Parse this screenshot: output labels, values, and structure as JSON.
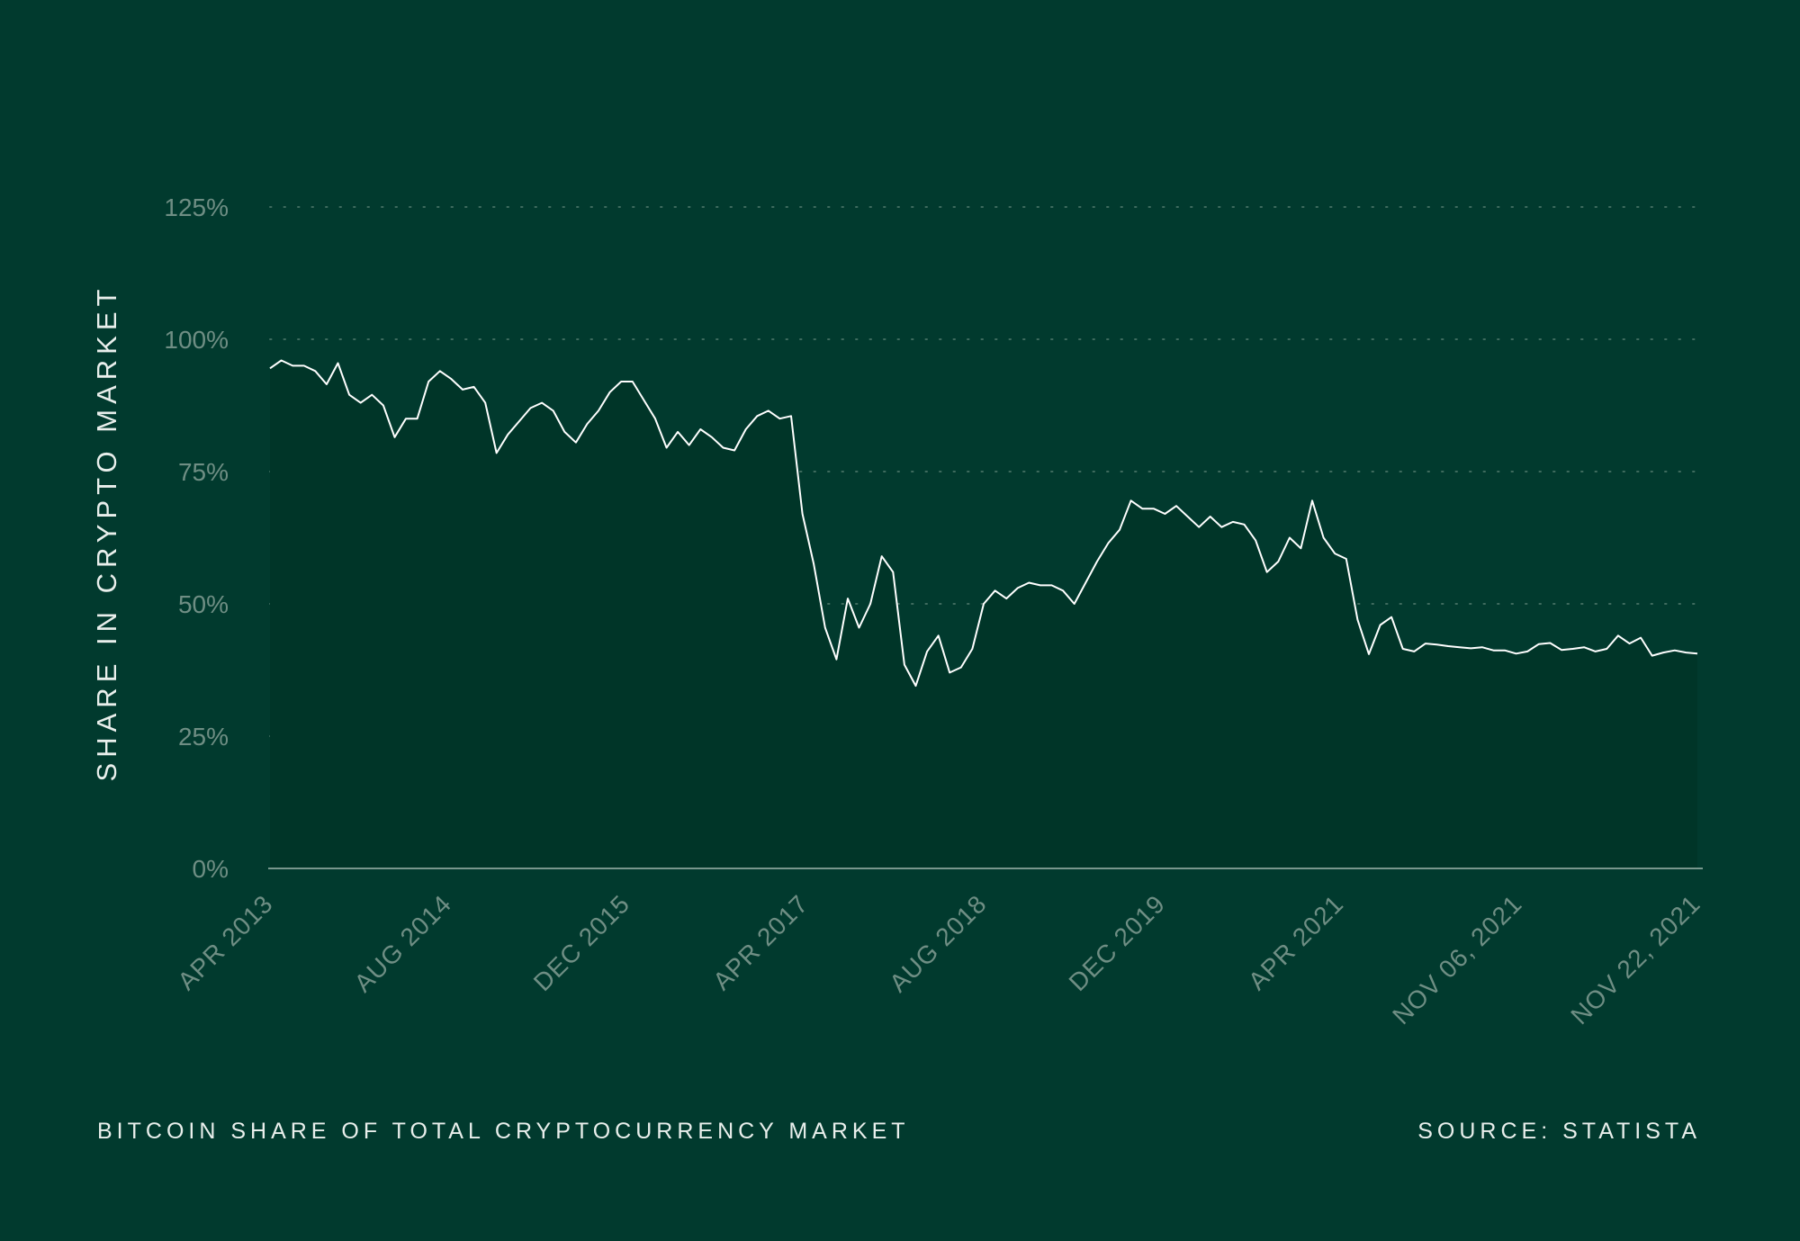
{
  "chart_data": {
    "type": "area",
    "title": "BITCOIN SHARE OF TOTAL CRYPTOCURRENCY MARKET",
    "source": "SOURCE: STATISTA",
    "ylabel": "SHARE IN CRYPTO MARKET",
    "xlabel": "",
    "ylim": [
      0,
      125
    ],
    "y_ticks": [
      "0%",
      "25%",
      "50%",
      "75%",
      "100%",
      "125%"
    ],
    "x_ticks": [
      "APR 2013",
      "AUG 2014",
      "DEC 2015",
      "APR 2017",
      "AUG 2018",
      "DEC 2019",
      "APR 2021",
      "NOV 06, 2021",
      "NOV 22, 2021"
    ],
    "grid": true,
    "colors": {
      "background": "#013a2e",
      "area_fill": "#003528",
      "line": "#ffffff",
      "grid": "#3f6b5e",
      "tick_text": "#6f8e84",
      "label_text": "#e9efec"
    },
    "series": [
      {
        "values": [
          94.5,
          96,
          95,
          95,
          94,
          91.5,
          95.5,
          89.5,
          88,
          89.5,
          87.5,
          81.5,
          85,
          85,
          92,
          94,
          92.5,
          90.5,
          91,
          88,
          78.5,
          82,
          84.5,
          87,
          88,
          86.5,
          82.5,
          80.5,
          84,
          86.5,
          90,
          92,
          92,
          88.5,
          85,
          79.5,
          82.5,
          80,
          83,
          81.5,
          79.5,
          79,
          83,
          85.5,
          86.5,
          85,
          85.5,
          67,
          57.5,
          45.5,
          39.5,
          51,
          45.5,
          50,
          59,
          56,
          38.5,
          34.5,
          41,
          44,
          37,
          38,
          41.5,
          50,
          52.5,
          51,
          53,
          54,
          53.5,
          53.5,
          52.5,
          50,
          54,
          58,
          61.5,
          64,
          69.5,
          68,
          68,
          67,
          68.5,
          66.5,
          64.5,
          66.5,
          64.5,
          65.5,
          65,
          62,
          56,
          58,
          62.5,
          60.5,
          69.5,
          62.5,
          59.5,
          58.5,
          47,
          40.5,
          46,
          47.5,
          41.5,
          41,
          42.5,
          42.3,
          42,
          41.8,
          41.6,
          41.8,
          41.2,
          41.2,
          40.6,
          41,
          42.4,
          42.6,
          41.3,
          41.5,
          41.8,
          41,
          41.5,
          44,
          42.5,
          43.6,
          40.2,
          40.8,
          41.2,
          40.8,
          40.6
        ]
      }
    ]
  }
}
